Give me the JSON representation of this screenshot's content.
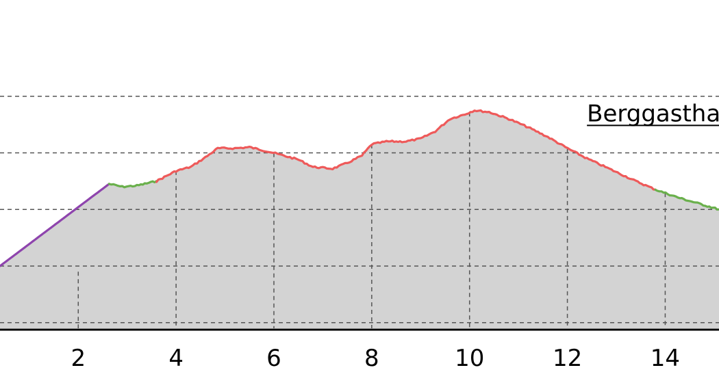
{
  "chart_data": {
    "type": "area",
    "title": "",
    "xlabel": "",
    "ylabel": "",
    "xlim": [
      0.4,
      15.1
    ],
    "ylim": [
      0,
      5.8
    ],
    "grid": true,
    "fill_color": "#d3d3d3",
    "baseline_color": "#000000",
    "x_ticks": [
      2,
      4,
      6,
      8,
      10,
      12,
      14
    ],
    "x_tick_labels": [
      "2",
      "4",
      "6",
      "8",
      "10",
      "12",
      "14"
    ],
    "y_gridlines": [
      0.1,
      1.1,
      2.1,
      3.1,
      4.1
    ],
    "annotations": [
      {
        "text": "Berggastha",
        "x": 12.4,
        "y": 3.85,
        "underline": true
      }
    ],
    "series": [
      {
        "color": "#8e44ad",
        "points": [
          [
            0.4,
            1.1
          ],
          [
            2.63,
            2.55
          ]
        ]
      },
      {
        "color": "#6ab04c",
        "points": [
          [
            2.63,
            2.55
          ],
          [
            2.9,
            2.5
          ],
          [
            3.2,
            2.52
          ],
          [
            3.6,
            2.6
          ]
        ]
      },
      {
        "color": "#ee5a5a",
        "points": [
          [
            3.6,
            2.6
          ],
          [
            4.0,
            2.78
          ],
          [
            4.3,
            2.85
          ],
          [
            4.6,
            3.02
          ],
          [
            4.85,
            3.18
          ],
          [
            5.2,
            3.18
          ],
          [
            5.5,
            3.2
          ],
          [
            5.9,
            3.12
          ],
          [
            6.2,
            3.05
          ],
          [
            6.5,
            2.98
          ],
          [
            6.8,
            2.85
          ],
          [
            7.2,
            2.82
          ],
          [
            7.5,
            2.92
          ],
          [
            7.8,
            3.05
          ],
          [
            8.0,
            3.25
          ],
          [
            8.3,
            3.3
          ],
          [
            8.7,
            3.3
          ],
          [
            9.0,
            3.35
          ],
          [
            9.3,
            3.48
          ],
          [
            9.6,
            3.7
          ],
          [
            9.9,
            3.78
          ],
          [
            10.1,
            3.85
          ],
          [
            10.4,
            3.82
          ],
          [
            10.8,
            3.7
          ],
          [
            11.2,
            3.55
          ],
          [
            11.6,
            3.38
          ],
          [
            12.0,
            3.18
          ],
          [
            12.4,
            3.0
          ],
          [
            12.9,
            2.8
          ],
          [
            13.4,
            2.6
          ],
          [
            13.8,
            2.45
          ]
        ]
      },
      {
        "color": "#6ab04c",
        "points": [
          [
            13.8,
            2.45
          ],
          [
            14.3,
            2.3
          ],
          [
            14.7,
            2.2
          ],
          [
            15.1,
            2.1
          ]
        ]
      }
    ]
  }
}
